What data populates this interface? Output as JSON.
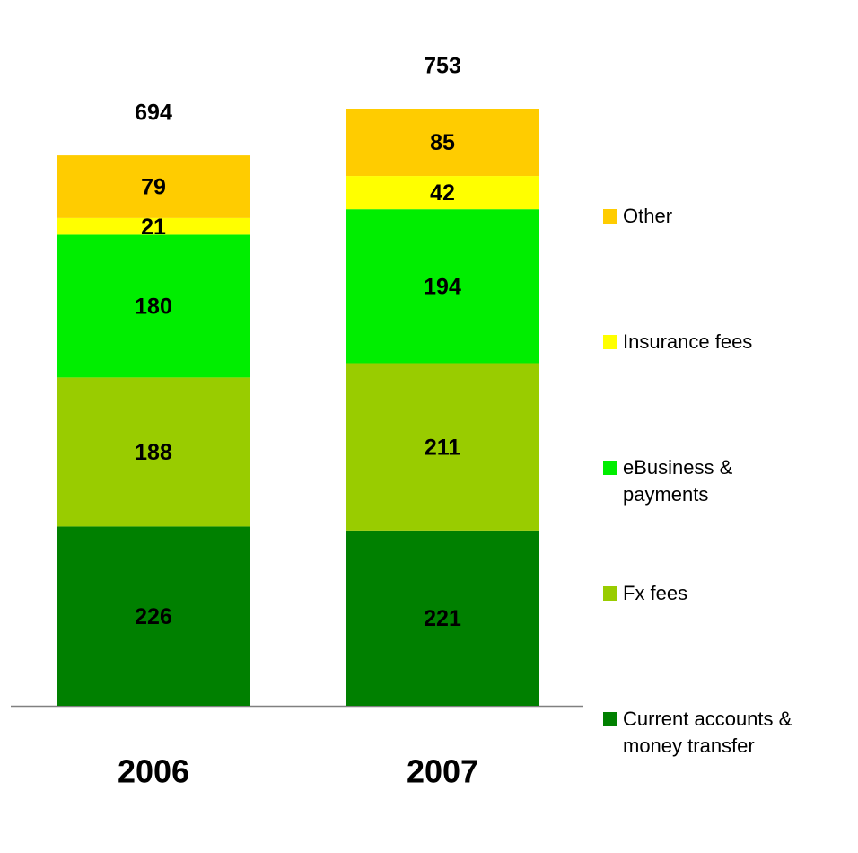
{
  "chart_data": {
    "type": "stacked_bar",
    "categories": [
      "2006",
      "2007"
    ],
    "totals": [
      694,
      753
    ],
    "series": [
      {
        "name": "Current accounts & money transfer",
        "color": "#008000",
        "values": [
          226,
          221
        ]
      },
      {
        "name": "Fx fees",
        "color": "#99cc00",
        "values": [
          188,
          211
        ]
      },
      {
        "name": "eBusiness & payments",
        "color": "#00ee00",
        "values": [
          180,
          194
        ]
      },
      {
        "name": "Insurance fees",
        "color": "#ffff00",
        "values": [
          21,
          42
        ]
      },
      {
        "name": "Other",
        "color": "#ffcc00",
        "values": [
          79,
          85
        ]
      }
    ]
  }
}
